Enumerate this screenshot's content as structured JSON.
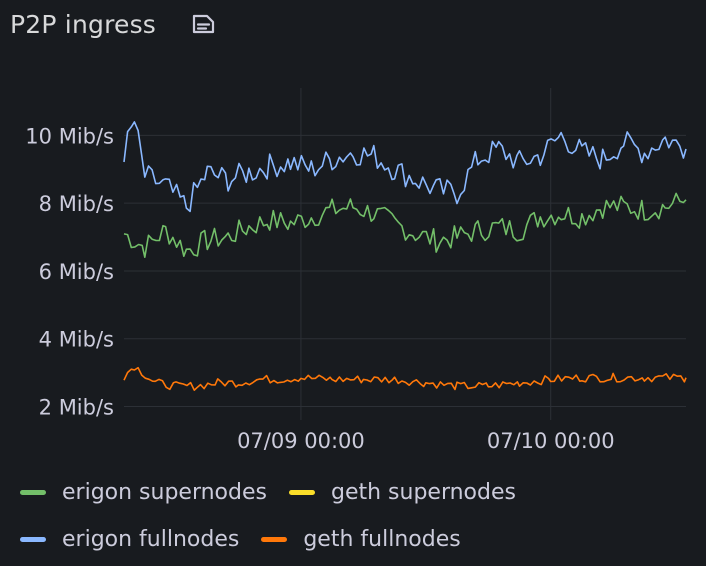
{
  "panel": {
    "title": "P2P ingress"
  },
  "chart_data": {
    "type": "line",
    "title": "P2P ingress",
    "unit": "Mib/s",
    "x_range": [
      "2024-07-08T07:00",
      "2024-07-10T13:00"
    ],
    "ylim": [
      1.6,
      11.4
    ],
    "y_ticks": [
      2,
      4,
      6,
      8,
      10
    ],
    "y_tick_labels": [
      "2 Mib/s",
      "4 Mib/s",
      "6 Mib/s",
      "8 Mib/s",
      "10 Mib/s"
    ],
    "x_ticks": [
      "2024-07-09T00:00",
      "2024-07-10T00:00"
    ],
    "x_tick_labels": [
      "07/09 00:00",
      "07/10 00:00"
    ],
    "grid": true,
    "legend_placement": "bottom",
    "series": [
      {
        "name": "erigon supernodes",
        "color": "#73bf69",
        "x": [
          "2024-07-08T07:00",
          "2024-07-08T09:00",
          "2024-07-08T11:00",
          "2024-07-08T13:00",
          "2024-07-08T15:00",
          "2024-07-08T17:00",
          "2024-07-08T19:00",
          "2024-07-08T21:00",
          "2024-07-08T23:00",
          "2024-07-09T01:00",
          "2024-07-09T03:00",
          "2024-07-09T05:00",
          "2024-07-09T07:00",
          "2024-07-09T09:00",
          "2024-07-09T11:00",
          "2024-07-09T13:00",
          "2024-07-09T15:00",
          "2024-07-09T17:00",
          "2024-07-09T19:00",
          "2024-07-09T21:00",
          "2024-07-09T23:00",
          "2024-07-10T01:00",
          "2024-07-10T03:00",
          "2024-07-10T05:00",
          "2024-07-10T07:00",
          "2024-07-10T09:00",
          "2024-07-10T11:00",
          "2024-07-10T13:00"
        ],
        "values": [
          7.1,
          6.7,
          7.2,
          6.6,
          6.9,
          7.0,
          7.3,
          7.5,
          7.4,
          7.6,
          7.8,
          7.9,
          7.7,
          7.4,
          7.1,
          6.9,
          7.0,
          7.2,
          7.3,
          7.2,
          7.6,
          7.7,
          7.6,
          7.9,
          7.9,
          7.8,
          7.9,
          8.1
        ]
      },
      {
        "name": "geth supernodes",
        "color": "#fade2a",
        "x": [],
        "values": []
      },
      {
        "name": "erigon fullnodes",
        "color": "#8ab8ff",
        "x": [
          "2024-07-08T07:00",
          "2024-07-08T08:00",
          "2024-07-08T09:00",
          "2024-07-08T11:00",
          "2024-07-08T13:00",
          "2024-07-08T15:00",
          "2024-07-08T17:00",
          "2024-07-08T19:00",
          "2024-07-08T21:00",
          "2024-07-08T23:00",
          "2024-07-09T01:00",
          "2024-07-09T03:00",
          "2024-07-09T05:00",
          "2024-07-09T07:00",
          "2024-07-09T09:00",
          "2024-07-09T11:00",
          "2024-07-09T13:00",
          "2024-07-09T15:00",
          "2024-07-09T17:00",
          "2024-07-09T19:00",
          "2024-07-09T21:00",
          "2024-07-09T23:00",
          "2024-07-10T01:00",
          "2024-07-10T03:00",
          "2024-07-10T05:00",
          "2024-07-10T07:00",
          "2024-07-10T09:00",
          "2024-07-10T11:00",
          "2024-07-10T13:00"
        ],
        "values": [
          9.5,
          10.4,
          8.8,
          8.5,
          7.9,
          8.9,
          8.7,
          8.9,
          9.1,
          9.2,
          9.0,
          9.3,
          9.5,
          9.4,
          9.0,
          8.7,
          8.4,
          8.3,
          9.3,
          9.6,
          9.2,
          9.4,
          10.0,
          9.5,
          9.3,
          9.8,
          9.5,
          9.9,
          9.6
        ]
      },
      {
        "name": "geth fullnodes",
        "color": "#ff780a",
        "x": [
          "2024-07-08T07:00",
          "2024-07-08T08:00",
          "2024-07-08T10:00",
          "2024-07-08T12:00",
          "2024-07-08T14:00",
          "2024-07-08T16:00",
          "2024-07-08T18:00",
          "2024-07-08T20:00",
          "2024-07-08T22:00",
          "2024-07-09T00:00",
          "2024-07-09T03:00",
          "2024-07-09T06:00",
          "2024-07-09T09:00",
          "2024-07-09T12:00",
          "2024-07-09T15:00",
          "2024-07-09T18:00",
          "2024-07-09T21:00",
          "2024-07-10T00:00",
          "2024-07-10T03:00",
          "2024-07-10T06:00",
          "2024-07-10T09:00",
          "2024-07-10T13:00"
        ],
        "values": [
          2.9,
          3.2,
          2.7,
          2.6,
          2.6,
          2.7,
          2.7,
          2.8,
          2.8,
          2.85,
          2.8,
          2.8,
          2.8,
          2.7,
          2.6,
          2.6,
          2.7,
          2.8,
          2.85,
          2.85,
          2.85,
          2.85
        ]
      }
    ]
  },
  "legend": {
    "rows": [
      [
        {
          "label": "erigon supernodes",
          "color": "#73bf69"
        },
        {
          "label": "geth supernodes",
          "color": "#fade2a"
        }
      ],
      [
        {
          "label": "erigon fullnodes",
          "color": "#8ab8ff"
        },
        {
          "label": "geth fullnodes",
          "color": "#ff780a"
        }
      ]
    ]
  }
}
